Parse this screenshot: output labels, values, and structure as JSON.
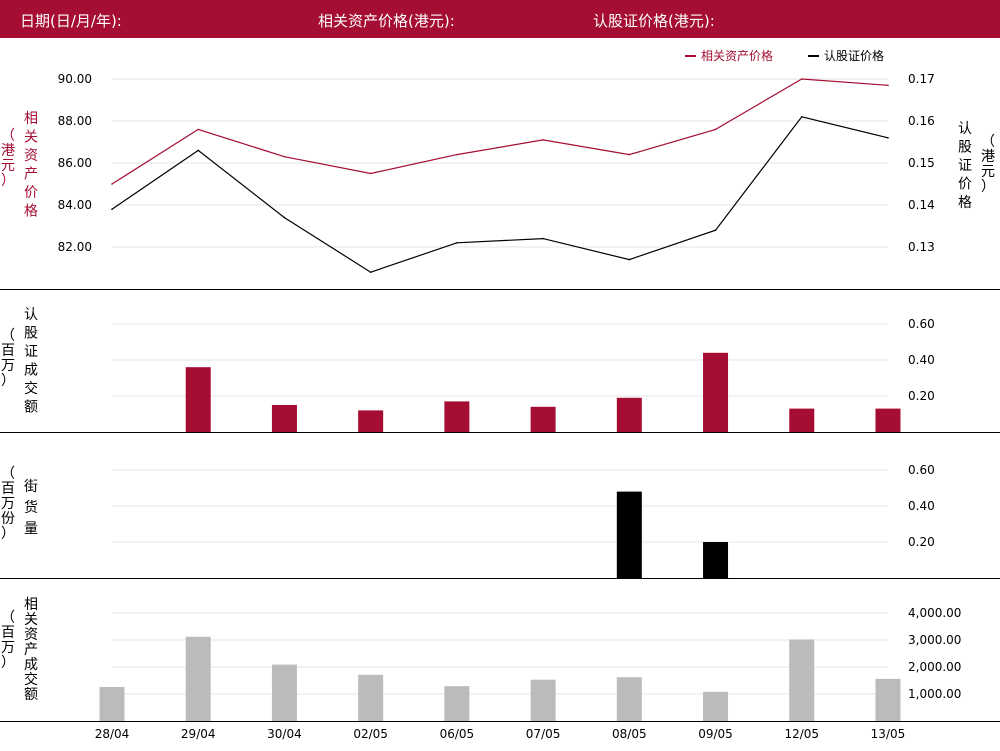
{
  "header": {
    "date_label": "日期(日/月/年):",
    "underlying_label": "相关资产价格(港元):",
    "warrant_label": "认股证价格(港元):"
  },
  "colors": {
    "accent": "#a50d32",
    "black": "#000000",
    "grey": "#bbbbbb",
    "grid": "#e6e6e6"
  },
  "chart_data": [
    {
      "type": "line",
      "panel": "price",
      "legend_position": "top-right",
      "x": [
        "28/04",
        "29/04",
        "30/04",
        "02/05",
        "06/05",
        "07/05",
        "08/05",
        "09/05",
        "12/05",
        "13/05"
      ],
      "series": [
        {
          "name": "相关资产价格",
          "axis": "left",
          "color": "#a50d32",
          "values": [
            85.0,
            87.6,
            86.3,
            85.5,
            86.4,
            87.1,
            86.4,
            87.6,
            90.0,
            89.7
          ]
        },
        {
          "name": "认股证价格",
          "axis": "right",
          "color": "#000000",
          "values": [
            0.139,
            0.153,
            0.137,
            0.124,
            0.131,
            0.132,
            0.127,
            0.134,
            0.161,
            0.156
          ]
        }
      ],
      "ylabel_left": "相关资产价格（港元）",
      "ylabel_right": "认股证价格（港元）",
      "ylim_left": [
        80.4,
        90.6
      ],
      "yticks_left": [
        "82.00",
        "84.00",
        "86.00",
        "88.00",
        "90.00"
      ],
      "ylim_right": [
        0.1225,
        0.1735
      ],
      "yticks_right": [
        "0.13",
        "0.14",
        "0.15",
        "0.16",
        "0.17"
      ],
      "grid": true
    },
    {
      "type": "bar",
      "panel": "warrant_turnover",
      "x": [
        "28/04",
        "29/04",
        "30/04",
        "02/05",
        "06/05",
        "07/05",
        "08/05",
        "09/05",
        "12/05",
        "13/05"
      ],
      "values": [
        0,
        0.36,
        0.15,
        0.12,
        0.17,
        0.14,
        0.19,
        0.44,
        0.13,
        0.13
      ],
      "color": "#a50d32",
      "ylabel": "认股证成交额（百万）",
      "ylim": [
        0,
        0.6
      ],
      "yticks": [
        "0.20",
        "0.40",
        "0.60"
      ],
      "grid": true
    },
    {
      "type": "bar",
      "panel": "outstanding",
      "x": [
        "28/04",
        "29/04",
        "30/04",
        "02/05",
        "06/05",
        "07/05",
        "08/05",
        "09/05",
        "12/05",
        "13/05"
      ],
      "values": [
        0,
        0,
        0,
        0,
        0,
        0,
        0.48,
        0.2,
        0,
        0
      ],
      "color": "#000000",
      "ylabel": "街货量（百万份）",
      "ylim": [
        0,
        0.6
      ],
      "yticks": [
        "0.20",
        "0.40",
        "0.60"
      ],
      "grid": true
    },
    {
      "type": "bar",
      "panel": "underlying_turnover",
      "x": [
        "28/04",
        "29/04",
        "30/04",
        "02/05",
        "06/05",
        "07/05",
        "08/05",
        "09/05",
        "12/05",
        "13/05"
      ],
      "values": [
        1260,
        3120,
        2090,
        1710,
        1290,
        1530,
        1620,
        1080,
        3020,
        1560
      ],
      "color": "#bbbbbb",
      "ylabel": "相关资产成交额（百万）",
      "ylim": [
        0,
        4000
      ],
      "yticks": [
        "1,000.00",
        "2,000.00",
        "3,000.00",
        "4,000.00"
      ],
      "grid": true
    }
  ]
}
